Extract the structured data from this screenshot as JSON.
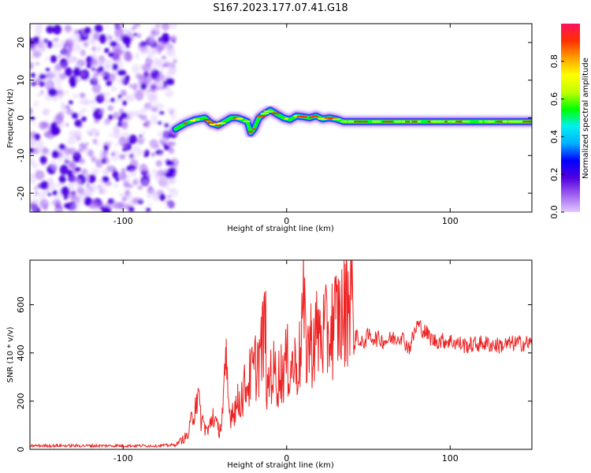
{
  "title": "S167.2023.177.07.41.G18",
  "colors": {
    "snr_line": "#ee2222",
    "noise": "#7a2be0",
    "axis": "#000000",
    "colormap": [
      "#e0c8ff",
      "#a060f0",
      "#5000e0",
      "#0000ff",
      "#00b0ff",
      "#00f0f0",
      "#00ff00",
      "#c0ff00",
      "#ffff00",
      "#ffa000",
      "#ff3000",
      "#ff1060"
    ]
  },
  "chart_data": [
    {
      "type": "heatmap",
      "xlabel": "Height of straight line (km)",
      "ylabel": "Frequency (Hz)",
      "xlim": [
        -157,
        150
      ],
      "ylim": [
        -25,
        25
      ],
      "x_ticks": [
        -100,
        0,
        100
      ],
      "y_ticks": [
        -20,
        -10,
        0,
        10,
        20
      ],
      "grid": false,
      "colorbar": {
        "label": "Normalized spectral amplitude",
        "range": [
          0,
          1
        ],
        "ticks": [
          "0.0",
          "0.2",
          "0.4",
          "0.6",
          "0.8"
        ]
      },
      "noise_region_x": [
        -157,
        -68
      ],
      "signal_region_x": [
        -68,
        150
      ],
      "signal_frequency_trace": {
        "x": [
          -68,
          -62,
          -56,
          -50,
          -46,
          -42,
          -38,
          -34,
          -30,
          -27,
          -24,
          -22,
          -20,
          -17,
          -14,
          -10,
          -6,
          -2,
          2,
          6,
          10,
          14,
          18,
          22,
          26,
          30,
          35,
          45,
          60,
          80,
          100,
          120,
          150
        ],
        "y": [
          -3,
          -1.5,
          -0.5,
          0,
          -1.5,
          -2,
          -1,
          0,
          0,
          -0.5,
          -1,
          -4,
          -3,
          0,
          1,
          2,
          1,
          0,
          -0.5,
          0.5,
          0.3,
          0,
          0.5,
          -0.3,
          0,
          -0.3,
          -1,
          -1,
          -1,
          -1,
          -1,
          -1,
          -1
        ]
      }
    },
    {
      "type": "line",
      "xlabel": "Height of straight line (km)",
      "ylabel": "SNR (10 * v/v)",
      "xlim": [
        -157,
        150
      ],
      "ylim": [
        0,
        785
      ],
      "x_ticks": [
        -100,
        0,
        100
      ],
      "y_ticks": [
        0,
        200,
        400,
        600
      ],
      "grid": false,
      "series": [
        {
          "x": [
            -157,
            -140,
            -120,
            -100,
            -80,
            -68,
            -60,
            -55,
            -52,
            -48,
            -45,
            -42,
            -40,
            -37,
            -35,
            -30,
            -25,
            -20,
            -15,
            -13,
            -12,
            -10,
            -5,
            0,
            5,
            8,
            10,
            12,
            15,
            20,
            25,
            30,
            35,
            38,
            40,
            41,
            43,
            45,
            50,
            60,
            70,
            75,
            80,
            90,
            100,
            110,
            120,
            130,
            140,
            150
          ],
          "y": [
            15,
            15,
            15,
            15,
            15,
            18,
            60,
            230,
            120,
            70,
            150,
            80,
            100,
            330,
            150,
            190,
            260,
            330,
            420,
            540,
            200,
            330,
            300,
            360,
            350,
            380,
            590,
            420,
            450,
            480,
            470,
            540,
            560,
            640,
            780,
            420,
            490,
            430,
            470,
            450,
            470,
            420,
            520,
            450,
            450,
            430,
            440,
            430,
            440,
            440
          ]
        }
      ]
    }
  ]
}
